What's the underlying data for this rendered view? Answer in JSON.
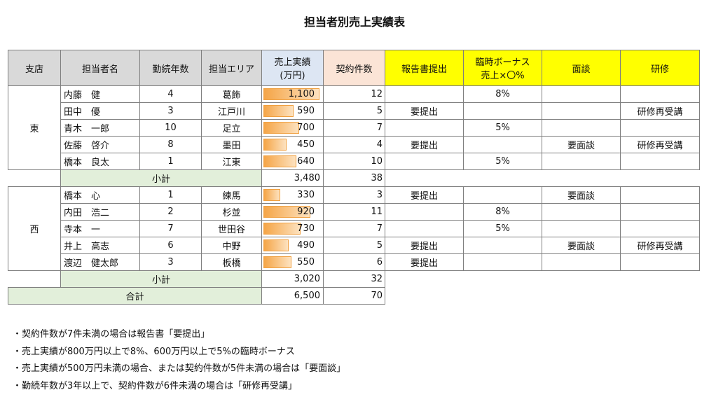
{
  "title": "担当者別売上実績表",
  "headers": {
    "branch": "支店",
    "name": "担当者名",
    "years": "勤続年数",
    "area": "担当エリア",
    "sales_line1": "売上実績",
    "sales_line2": "(万円)",
    "contracts": "契約件数",
    "report": "報告書提出",
    "bonus_line1": "臨時ボーナス",
    "bonus_line2": "売上×〇%",
    "interview": "面談",
    "training": "研修"
  },
  "sales_max": 1100,
  "branches": [
    {
      "name": "東",
      "rows": [
        {
          "name": "内藤　健",
          "years": "4",
          "area": "葛飾",
          "sales": 1100,
          "sales_text": "1,100",
          "contracts": "12",
          "report": "",
          "bonus": "8%",
          "interview": "",
          "training": ""
        },
        {
          "name": "田中　優",
          "years": "3",
          "area": "江戸川",
          "sales": 590,
          "sales_text": "590",
          "contracts": "5",
          "report": "要提出",
          "bonus": "",
          "interview": "",
          "training": "研修再受講"
        },
        {
          "name": "青木　一郎",
          "years": "10",
          "area": "足立",
          "sales": 700,
          "sales_text": "700",
          "contracts": "7",
          "report": "",
          "bonus": "5%",
          "interview": "",
          "training": ""
        },
        {
          "name": "佐藤　啓介",
          "years": "8",
          "area": "墨田",
          "sales": 450,
          "sales_text": "450",
          "contracts": "4",
          "report": "要提出",
          "bonus": "",
          "interview": "要面談",
          "training": "研修再受講"
        },
        {
          "name": "橋本　良太",
          "years": "1",
          "area": "江東",
          "sales": 640,
          "sales_text": "640",
          "contracts": "10",
          "report": "",
          "bonus": "5%",
          "interview": "",
          "training": ""
        }
      ],
      "subtotal_label": "小計",
      "subtotal_sales": "3,480",
      "subtotal_contracts": "38"
    },
    {
      "name": "西",
      "rows": [
        {
          "name": "橋本　心",
          "years": "1",
          "area": "練馬",
          "sales": 330,
          "sales_text": "330",
          "contracts": "3",
          "report": "要提出",
          "bonus": "",
          "interview": "要面談",
          "training": ""
        },
        {
          "name": "内田　浩二",
          "years": "2",
          "area": "杉並",
          "sales": 920,
          "sales_text": "920",
          "contracts": "11",
          "report": "",
          "bonus": "8%",
          "interview": "",
          "training": ""
        },
        {
          "name": "寺本　一",
          "years": "7",
          "area": "世田谷",
          "sales": 730,
          "sales_text": "730",
          "contracts": "7",
          "report": "",
          "bonus": "5%",
          "interview": "",
          "training": ""
        },
        {
          "name": "井上　高志",
          "years": "6",
          "area": "中野",
          "sales": 490,
          "sales_text": "490",
          "contracts": "5",
          "report": "要提出",
          "bonus": "",
          "interview": "要面談",
          "training": "研修再受講"
        },
        {
          "name": "渡辺　健太郎",
          "years": "3",
          "area": "板橋",
          "sales": 550,
          "sales_text": "550",
          "contracts": "6",
          "report": "要提出",
          "bonus": "",
          "interview": "",
          "training": ""
        }
      ],
      "subtotal_label": "小計",
      "subtotal_sales": "3,020",
      "subtotal_contracts": "32"
    }
  ],
  "total": {
    "label": "合計",
    "sales": "6,500",
    "contracts": "70"
  },
  "notes": [
    "・契約件数が7件未満の場合は報告書「要提出」",
    "・売上実績が800万円以上で8%、600万円以上で5%の臨時ボーナス",
    "・売上実績が500万円未満の場合、または契約件数が5件未満の場合は「要面談」",
    "・勤続年数が3年以上で、契約件数が6件未満の場合は「研修再受講」"
  ]
}
